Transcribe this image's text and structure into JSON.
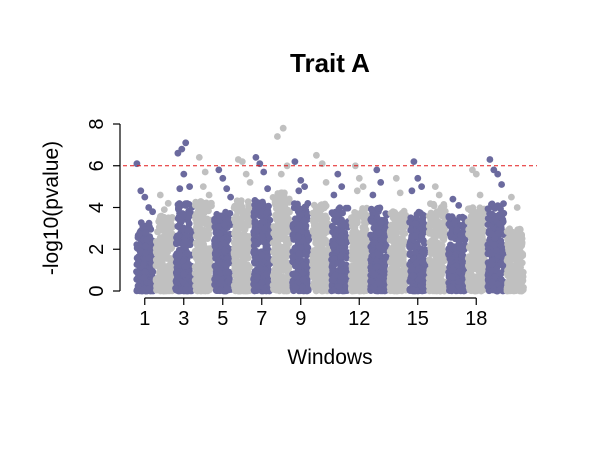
{
  "chart_data": {
    "type": "scatter",
    "subtype": "manhattan",
    "title": "Trait A",
    "xlabel": "Windows",
    "ylabel": "-log10(pvalue)",
    "ylim": [
      0,
      8
    ],
    "y_ticks": [
      0,
      2,
      4,
      6,
      8
    ],
    "threshold": {
      "value": 6,
      "color": "#e31a1c",
      "style": "dashed"
    },
    "colors": {
      "odd": "#6b6a9e",
      "even": "#c0c0c0"
    },
    "x_tick_labels": [
      "1",
      "3",
      "5",
      "7",
      "9",
      "12",
      "15",
      "18"
    ],
    "x_tick_groups": [
      1,
      3,
      5,
      7,
      9,
      12,
      15,
      18
    ],
    "groups": [
      {
        "id": 1,
        "bulk_max": 3.3,
        "peaks": [
          [
            0.1,
            6.1
          ],
          [
            0.3,
            4.8
          ],
          [
            0.5,
            4.5
          ],
          [
            0.7,
            4.0
          ],
          [
            0.9,
            3.8
          ]
        ]
      },
      {
        "id": 2,
        "bulk_max": 3.6,
        "peaks": [
          [
            0.3,
            4.6
          ],
          [
            0.7,
            4.2
          ],
          [
            0.5,
            3.9
          ]
        ]
      },
      {
        "id": 3,
        "bulk_max": 4.2,
        "peaks": [
          [
            0.2,
            6.6
          ],
          [
            0.4,
            6.8
          ],
          [
            0.6,
            7.1
          ],
          [
            0.8,
            5.0
          ],
          [
            0.5,
            5.6
          ],
          [
            0.3,
            4.9
          ]
        ]
      },
      {
        "id": 4,
        "bulk_max": 4.3,
        "peaks": [
          [
            0.3,
            6.4
          ],
          [
            0.6,
            5.7
          ],
          [
            0.5,
            5.0
          ],
          [
            0.8,
            4.6
          ]
        ]
      },
      {
        "id": 5,
        "bulk_max": 3.8,
        "peaks": [
          [
            0.3,
            5.8
          ],
          [
            0.5,
            5.4
          ],
          [
            0.7,
            4.9
          ],
          [
            0.9,
            4.5
          ]
        ]
      },
      {
        "id": 6,
        "bulk_max": 4.4,
        "peaks": [
          [
            0.3,
            6.3
          ],
          [
            0.5,
            6.2
          ],
          [
            0.7,
            5.6
          ],
          [
            0.9,
            5.2
          ]
        ]
      },
      {
        "id": 7,
        "bulk_max": 4.4,
        "peaks": [
          [
            0.2,
            6.4
          ],
          [
            0.4,
            6.1
          ],
          [
            0.6,
            5.7
          ],
          [
            0.8,
            4.9
          ]
        ]
      },
      {
        "id": 8,
        "bulk_max": 4.8,
        "peaks": [
          [
            0.3,
            7.4
          ],
          [
            0.6,
            7.8
          ],
          [
            0.8,
            6.0
          ],
          [
            0.5,
            5.6
          ]
        ]
      },
      {
        "id": 9,
        "bulk_max": 4.2,
        "peaks": [
          [
            0.2,
            6.2
          ],
          [
            0.5,
            5.3
          ],
          [
            0.7,
            5.0
          ],
          [
            0.4,
            4.8
          ]
        ]
      },
      {
        "id": 10,
        "bulk_max": 4.2,
        "peaks": [
          [
            0.3,
            6.5
          ],
          [
            0.6,
            6.1
          ],
          [
            0.8,
            5.2
          ]
        ]
      },
      {
        "id": 11,
        "bulk_max": 4.0,
        "peaks": [
          [
            0.4,
            5.6
          ],
          [
            0.6,
            5.0
          ],
          [
            0.2,
            4.6
          ]
        ]
      },
      {
        "id": 12,
        "bulk_max": 4.0,
        "peaks": [
          [
            0.3,
            6.0
          ],
          [
            0.5,
            5.4
          ],
          [
            0.7,
            5.0
          ],
          [
            0.4,
            4.8
          ]
        ]
      },
      {
        "id": 13,
        "bulk_max": 4.0,
        "peaks": [
          [
            0.4,
            5.8
          ],
          [
            0.6,
            5.2
          ],
          [
            0.2,
            4.6
          ]
        ]
      },
      {
        "id": 14,
        "bulk_max": 3.9,
        "peaks": [
          [
            0.4,
            5.4
          ],
          [
            0.6,
            4.7
          ]
        ]
      },
      {
        "id": 15,
        "bulk_max": 3.8,
        "peaks": [
          [
            0.3,
            6.2
          ],
          [
            0.5,
            5.4
          ],
          [
            0.7,
            5.0
          ],
          [
            0.2,
            4.8
          ]
        ]
      },
      {
        "id": 16,
        "bulk_max": 4.2,
        "peaks": [
          [
            0.4,
            5.0
          ],
          [
            0.6,
            4.6
          ]
        ]
      },
      {
        "id": 17,
        "bulk_max": 3.6,
        "peaks": [
          [
            0.3,
            4.4
          ],
          [
            0.6,
            4.1
          ]
        ]
      },
      {
        "id": 18,
        "bulk_max": 4.0,
        "peaks": [
          [
            0.3,
            5.8
          ],
          [
            0.5,
            5.6
          ],
          [
            0.7,
            4.6
          ]
        ]
      },
      {
        "id": 19,
        "bulk_max": 4.2,
        "peaks": [
          [
            0.2,
            6.3
          ],
          [
            0.4,
            5.8
          ],
          [
            0.6,
            5.6
          ],
          [
            0.8,
            5.1
          ]
        ]
      },
      {
        "id": 20,
        "bulk_max": 3.0,
        "peaks": [
          [
            0.3,
            4.5
          ],
          [
            0.6,
            4.0
          ]
        ]
      }
    ],
    "grid": false,
    "legend": "none"
  }
}
